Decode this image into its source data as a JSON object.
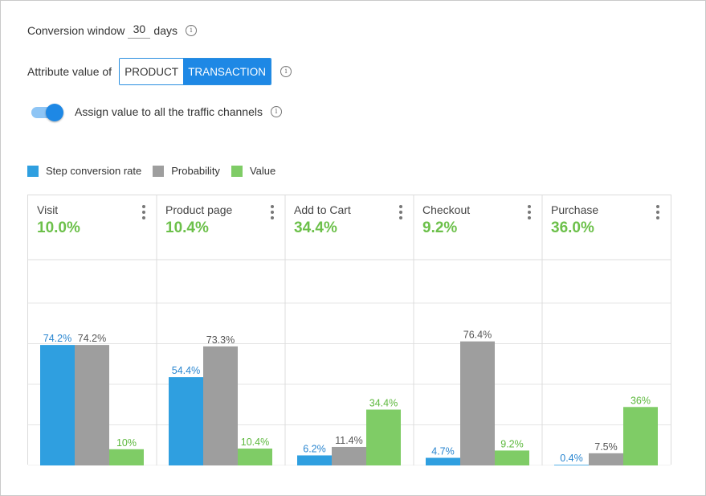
{
  "settings": {
    "conversion_window_label": "Conversion window",
    "conversion_window_value": "30",
    "conversion_window_unit": "days",
    "attribute_label": "Attribute value of",
    "attribute_options": [
      "PRODUCT",
      "TRANSACTION"
    ],
    "attribute_selected": "TRANSACTION",
    "assign_toggle_label": "Assign value to all the traffic channels",
    "assign_toggle_on": true,
    "info_icon_glyph": "i"
  },
  "colors": {
    "step_conversion_rate": "#2f9fe0",
    "probability": "#9e9e9e",
    "value": "#7fcc66",
    "step_label": "#2a86d0",
    "probability_label": "#555555",
    "value_label": "#5cb83c",
    "header_value": "#6cc04a",
    "accent": "#1e88e5"
  },
  "chart_data": {
    "type": "bar",
    "categories": [
      "Visit",
      "Product page",
      "Add to Cart",
      "Checkout",
      "Purchase"
    ],
    "header_values": [
      "10.0%",
      "10.4%",
      "34.4%",
      "9.2%",
      "36.0%"
    ],
    "series": [
      {
        "name": "Step conversion rate",
        "values": [
          74.2,
          54.4,
          6.2,
          4.7,
          0.4
        ],
        "labels": [
          "74.2%",
          "54.4%",
          "6.2%",
          "4.7%",
          "0.4%"
        ]
      },
      {
        "name": "Probability",
        "values": [
          74.2,
          73.3,
          11.4,
          76.4,
          7.5
        ],
        "labels": [
          "74.2%",
          "73.3%",
          "11.4%",
          "76.4%",
          "7.5%"
        ]
      },
      {
        "name": "Value",
        "values": [
          10.0,
          10.4,
          34.4,
          9.2,
          36.0
        ],
        "labels": [
          "10%",
          "10.4%",
          "34.4%",
          "9.2%",
          "36%"
        ]
      }
    ],
    "ylim": [
      0,
      100
    ],
    "grid": true,
    "legend_position": "top-left"
  }
}
